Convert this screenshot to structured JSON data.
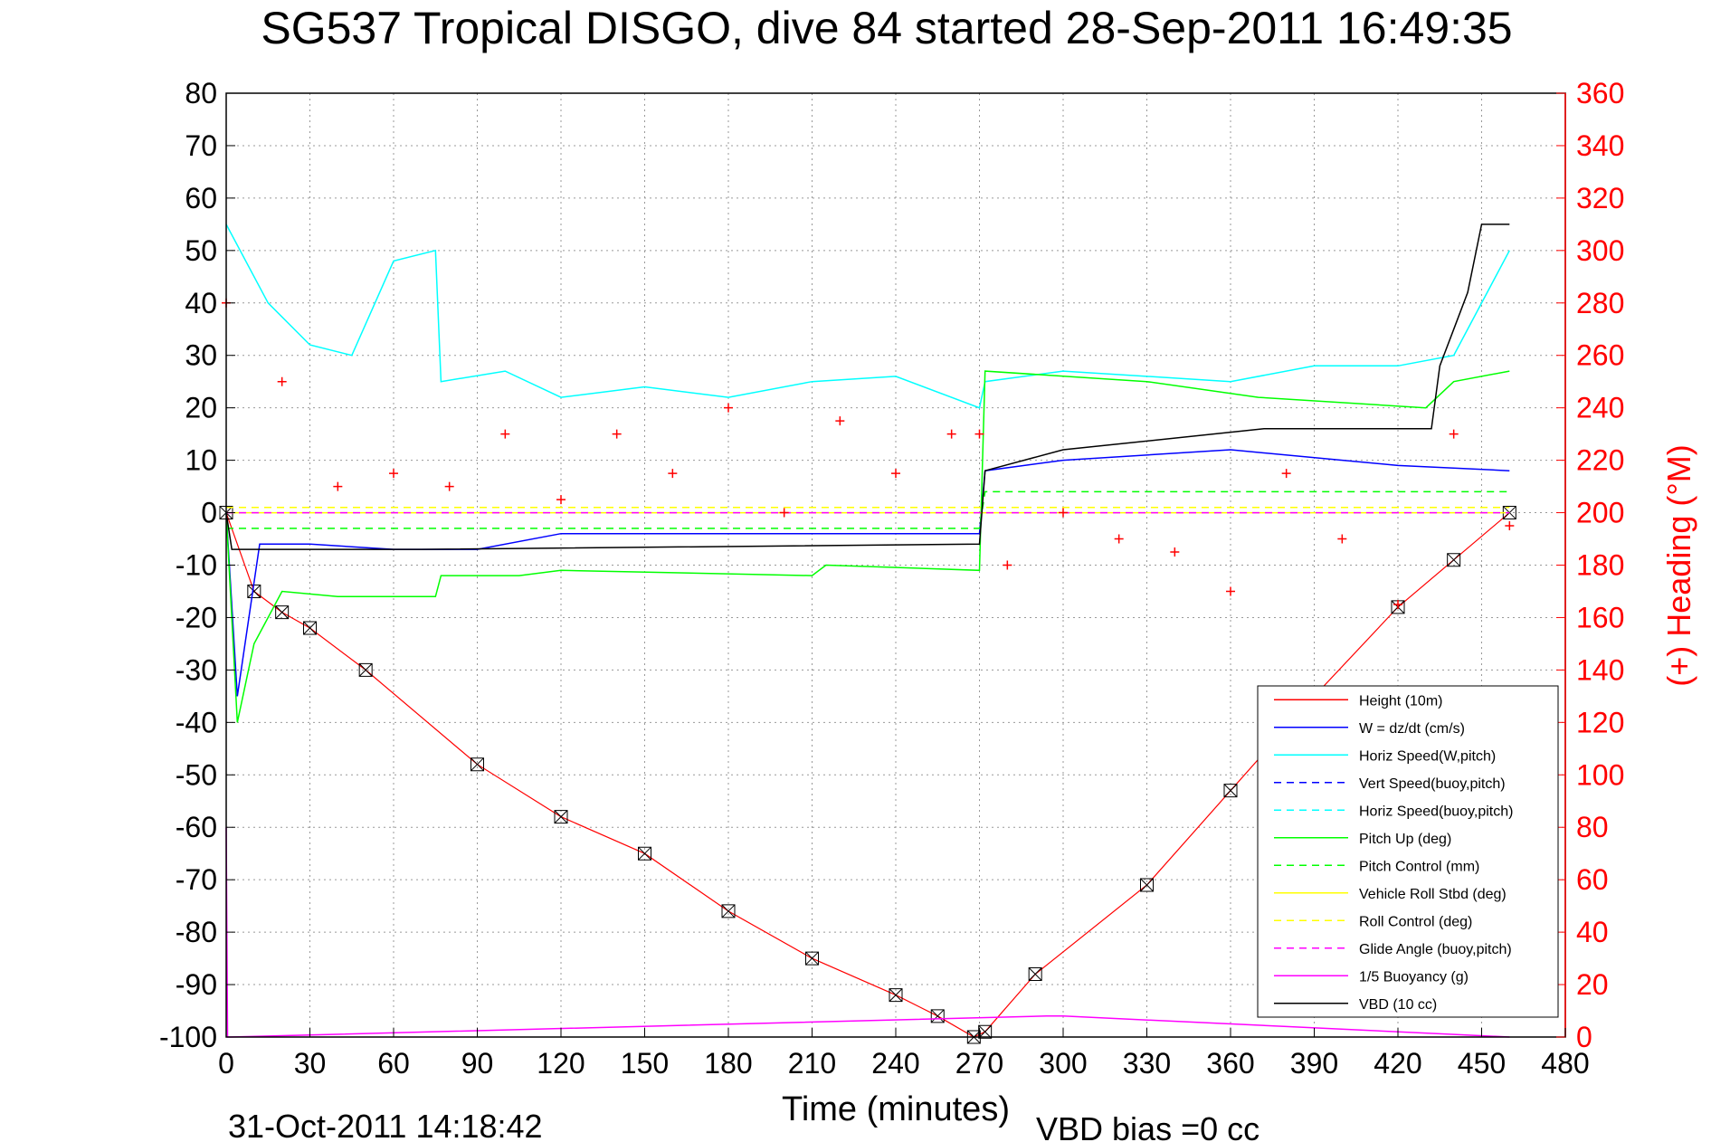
{
  "title": "SG537 Tropical DISGO, dive 84 started 28-Sep-2011 16:49:35",
  "timestamp": "31-Oct-2011 14:18:42",
  "vbd_bias": "VBD bias =0 cc",
  "colors": {
    "height": "#ff0000",
    "w": "#0000ff",
    "horiz_speed": "#00ffff",
    "pitch": "#00ff00",
    "roll": "#ffff00",
    "glide": "#ff00ff",
    "vbd": "#000000",
    "heading": "#ff0000",
    "right_axis": "#ff0000"
  },
  "chart_data": {
    "type": "line",
    "xlabel": "Time (minutes)",
    "ylabel_right": "(+) Heading (°M)",
    "xlim": [
      0,
      480
    ],
    "ylim": [
      -100,
      80
    ],
    "ylim_right": [
      0,
      360
    ],
    "xticks": [
      0,
      30,
      60,
      90,
      120,
      150,
      180,
      210,
      240,
      270,
      300,
      330,
      360,
      390,
      420,
      450,
      480
    ],
    "yticks": [
      80,
      70,
      60,
      50,
      40,
      30,
      20,
      10,
      0,
      -10,
      -20,
      -30,
      -40,
      -50,
      -60,
      -70,
      -80,
      -90,
      -100
    ],
    "yticks_right": [
      360,
      340,
      320,
      300,
      280,
      260,
      240,
      220,
      200,
      180,
      160,
      140,
      120,
      100,
      80,
      60,
      40,
      20,
      0
    ],
    "grid": true,
    "legend_position": "bottom-right",
    "legend": [
      "Height (10m)",
      "W = dz/dt (cm/s)",
      "Horiz Speed(W,pitch)",
      "Vert Speed(buoy,pitch)",
      "Horiz Speed(buoy,pitch)",
      "Pitch Up (deg)",
      "Pitch Control (mm)",
      "Vehicle Roll Stbd (deg)",
      "Roll Control (deg)",
      "Glide Angle (buoy,pitch)",
      "1/5 Buoyancy (g)",
      "VBD (10 cc)"
    ],
    "series": [
      {
        "name": "Height (10m)",
        "x": [
          0,
          10,
          20,
          30,
          50,
          90,
          120,
          150,
          180,
          210,
          240,
          255,
          268,
          272,
          290,
          330,
          360,
          390,
          420,
          440,
          460
        ],
        "y": [
          0,
          -15,
          -19,
          -22,
          -30,
          -48,
          -58,
          -65,
          -76,
          -85,
          -92,
          -96,
          -100,
          -99,
          -88,
          -71,
          -53,
          -35,
          -18,
          -9,
          0
        ]
      },
      {
        "name": "W = dz/dt (cm/s)",
        "x": [
          0,
          4,
          12,
          30,
          60,
          90,
          120,
          180,
          240,
          270,
          272,
          300,
          360,
          420,
          460
        ],
        "y": [
          0,
          -35,
          -6,
          -6,
          -7,
          -7,
          -4,
          -4,
          -4,
          -4,
          8,
          10,
          12,
          9,
          8
        ]
      },
      {
        "name": "Horiz Speed(W,pitch)",
        "x": [
          0,
          15,
          30,
          45,
          60,
          75,
          77,
          100,
          120,
          150,
          180,
          210,
          240,
          270,
          272,
          300,
          360,
          390,
          420,
          440,
          460
        ],
        "y": [
          55,
          40,
          32,
          30,
          48,
          50,
          25,
          27,
          22,
          24,
          22,
          25,
          26,
          20,
          25,
          27,
          25,
          28,
          28,
          30,
          50
        ]
      },
      {
        "name": "Pitch Up (deg)",
        "x": [
          0,
          4,
          10,
          20,
          40,
          75,
          77,
          105,
          120,
          210,
          215,
          270,
          272,
          330,
          370,
          430,
          440,
          460
        ],
        "y": [
          0,
          -40,
          -25,
          -15,
          -16,
          -16,
          -12,
          -12,
          -11,
          -12,
          -10,
          -11,
          27,
          25,
          22,
          20,
          25,
          27
        ]
      },
      {
        "name": "Pitch Control (mm)",
        "x": [
          0,
          270,
          272,
          460
        ],
        "y": [
          -3,
          -3,
          4,
          4
        ]
      },
      {
        "name": "Vehicle Roll Stbd (deg)",
        "x": [
          0,
          460
        ],
        "y": [
          0,
          0
        ]
      },
      {
        "name": "Roll Control (deg)",
        "x": [
          0,
          460
        ],
        "y": [
          1,
          1
        ]
      },
      {
        "name": "Glide Angle (buoy,pitch)",
        "x": [
          0,
          460
        ],
        "y": [
          0,
          0
        ]
      },
      {
        "name": "1/5 Buoyancy (g)",
        "x": [
          0,
          0.5,
          1,
          294,
          300,
          380,
          460
        ],
        "y": [
          -60,
          -100,
          -100,
          -96,
          -96,
          -98,
          -100
        ]
      },
      {
        "name": "VBD (10 cc)",
        "x": [
          0,
          2,
          70,
          270,
          272,
          300,
          372,
          432,
          435,
          440,
          445,
          450,
          460
        ],
        "y": [
          0,
          -7,
          -7,
          -6,
          8,
          12,
          16,
          16,
          28,
          35,
          42,
          55,
          55
        ]
      },
      {
        "name": "(+) Heading (°M)",
        "axis": "right",
        "x": [
          0,
          20,
          40,
          60,
          80,
          100,
          120,
          140,
          160,
          180,
          200,
          220,
          240,
          260,
          270,
          280,
          300,
          320,
          340,
          360,
          380,
          400,
          420,
          440,
          460
        ],
        "y": [
          280,
          250,
          210,
          215,
          210,
          230,
          205,
          230,
          215,
          240,
          200,
          235,
          215,
          230,
          230,
          180,
          200,
          190,
          185,
          170,
          215,
          190,
          165,
          230,
          195
        ]
      }
    ]
  }
}
